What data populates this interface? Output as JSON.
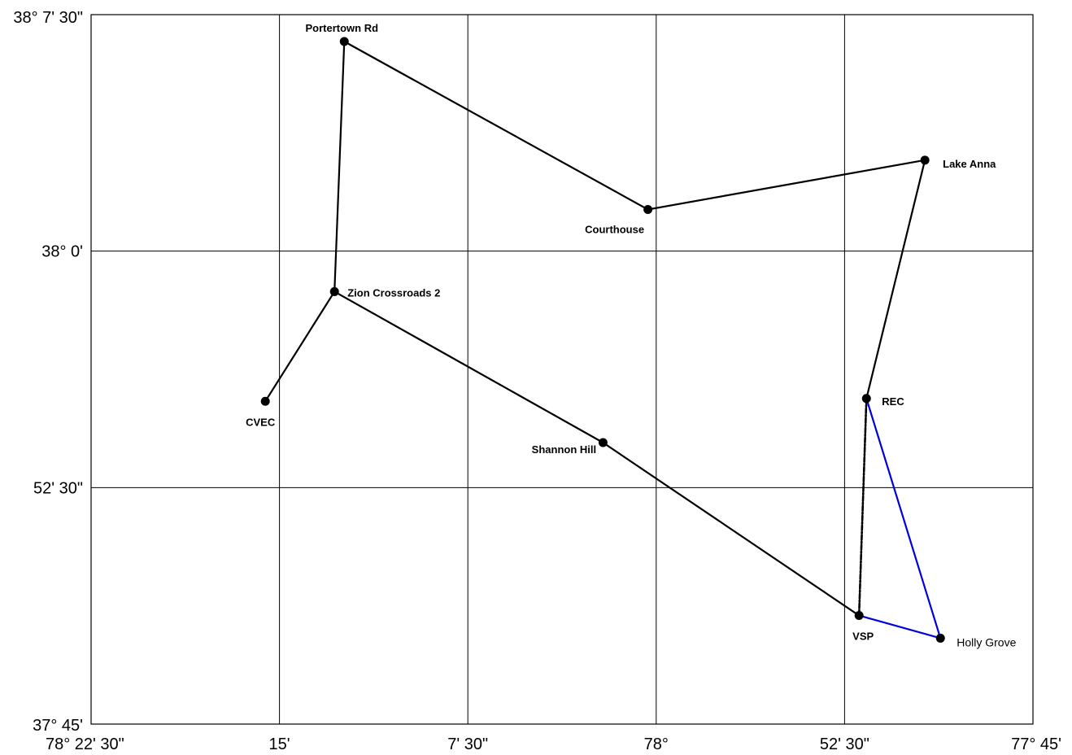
{
  "map": {
    "latitude_ticks": [
      {
        "label": "38° 7' 30\"",
        "value": 38.125
      },
      {
        "label": "38° 0'",
        "value": 38.0
      },
      {
        "label": "52' 30\"",
        "value": 37.875
      },
      {
        "label": "37° 45'",
        "value": 37.75
      }
    ],
    "longitude_ticks": [
      {
        "label": "78° 22' 30\"",
        "value": -78.375
      },
      {
        "label": "15'",
        "value": -78.25
      },
      {
        "label": "7' 30\"",
        "value": -78.125
      },
      {
        "label": "78°",
        "value": -78.0
      },
      {
        "label": "52' 30\"",
        "value": -77.875
      },
      {
        "label": "77° 45'",
        "value": -77.75
      }
    ],
    "lon_range": [
      -78.375,
      -77.75
    ],
    "lat_range": [
      37.75,
      38.125
    ],
    "nodes": [
      {
        "id": "portertown",
        "label": "Portertown Rd",
        "lon": -78.207,
        "lat": 38.1108
      },
      {
        "id": "courthouse",
        "label": "Courthouse",
        "lon": -78.0055,
        "lat": 38.022
      },
      {
        "id": "lakeanna",
        "label": "Lake Anna",
        "lon": -77.8217,
        "lat": 38.0481
      },
      {
        "id": "zion",
        "label": "Zion Crossroads 2",
        "lon": -78.2135,
        "lat": 37.9786
      },
      {
        "id": "cvec",
        "label": "CVEC",
        "lon": -78.2594,
        "lat": 37.9206
      },
      {
        "id": "rec",
        "label": "REC",
        "lon": -77.8605,
        "lat": 37.9221
      },
      {
        "id": "shannon",
        "label": "Shannon Hill",
        "lon": -78.0353,
        "lat": 37.8988
      },
      {
        "id": "vsp",
        "label": "VSP",
        "lon": -77.8654,
        "lat": 37.8074
      },
      {
        "id": "hollygrove",
        "label": "Holly Grove",
        "lon": -77.8114,
        "lat": 37.7954
      }
    ],
    "lines": [
      {
        "from": "portertown",
        "to": "courthouse",
        "color": "#000000",
        "style": "solid"
      },
      {
        "from": "courthouse",
        "to": "lakeanna",
        "color": "#000000",
        "style": "solid"
      },
      {
        "from": "portertown",
        "to": "zion",
        "color": "#000000",
        "style": "solid"
      },
      {
        "from": "zion",
        "to": "cvec",
        "color": "#000000",
        "style": "solid"
      },
      {
        "from": "zion",
        "to": "shannon",
        "color": "#000000",
        "style": "solid"
      },
      {
        "from": "shannon",
        "to": "vsp",
        "color": "#000000",
        "style": "solid"
      },
      {
        "from": "lakeanna",
        "to": "rec",
        "color": "#000000",
        "style": "solid"
      },
      {
        "from": "rec",
        "to": "vsp",
        "color": "#000000",
        "style": "dashed"
      },
      {
        "from": "rec",
        "to": "hollygrove",
        "color": "#0000dd",
        "style": "solid"
      },
      {
        "from": "vsp",
        "to": "hollygrove",
        "color": "#0000dd",
        "style": "solid"
      }
    ]
  }
}
